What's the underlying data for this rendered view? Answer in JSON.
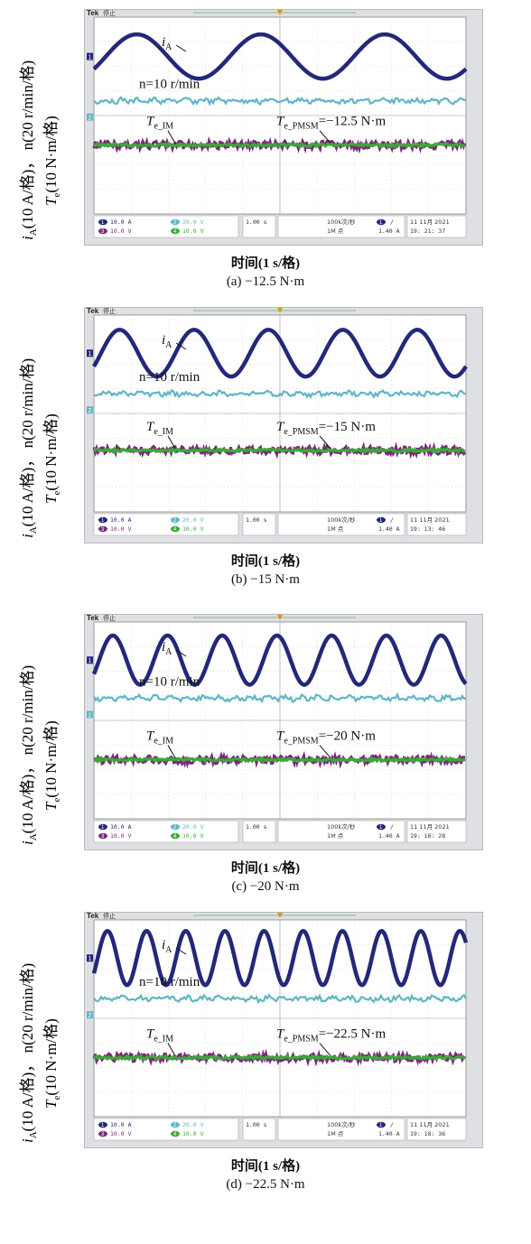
{
  "scope": {
    "brand": "Tek",
    "state": "停止",
    "ch1_scale": "10.0 A",
    "ch2_scale": "20.0 V",
    "ch3_scale": "10.0 V",
    "ch4_scale": "10.0 V",
    "timebase": "1.00 s",
    "sample_rate": "100k次/秒",
    "record_length": "1M 点",
    "trigger_level": "1.40 A",
    "trigger_ch": "1",
    "trigger_slope": "/",
    "date": "11 11月 2021"
  },
  "ylabel_line1": "i",
  "ylabel_line1_sub": "A",
  "ylabel_line1_rest": "(10 A/格)， n(20 r/min/格)",
  "ylabel_line2": "T",
  "ylabel_line2_sub": "e",
  "ylabel_line2_rest": "(10 N·m/格)",
  "xlabel": "时间(1 s/格)",
  "label_iA": "i",
  "label_iA_sub": "A",
  "label_speed": "n=10 r/min",
  "label_TeIM": "T",
  "label_TeIM_sub": "e_IM",
  "label_TePMSM": "T",
  "label_TePMSM_sub": "e_PMSM",
  "colors": {
    "current": "#23287a",
    "speed": "#5fb6c4",
    "torque_pmsm": "#7a2a7a",
    "torque_im": "#3da83a",
    "screen": "#ffffff",
    "grid": "#c9c9c9"
  },
  "chart_data": [
    {
      "type": "line",
      "caption": "(a) −12.5 N·m",
      "torque_label": "=−12.5 N·m",
      "time": "19: 21: 37",
      "x_unit": "s",
      "series": [
        {
          "name": "i_A",
          "periods_on_screen": 3.0,
          "amplitude_div": 0.9,
          "center_div": 1.6
        },
        {
          "name": "n",
          "value": 10,
          "center_div": 3.4
        },
        {
          "name": "T_e_IM",
          "center_div": 5.2
        },
        {
          "name": "T_e_PMSM",
          "value": -12.5,
          "center_div": 5.2
        }
      ]
    },
    {
      "type": "line",
      "caption": "(b) −15 N·m",
      "torque_label": "=−15 N·m",
      "time": "19: 13: 46",
      "x_unit": "s",
      "series": [
        {
          "name": "i_A",
          "periods_on_screen": 5.0,
          "amplitude_div": 0.95,
          "center_div": 1.55
        },
        {
          "name": "n",
          "value": 10,
          "center_div": 3.2
        },
        {
          "name": "T_e_IM",
          "center_div": 5.5
        },
        {
          "name": "T_e_PMSM",
          "value": -15,
          "center_div": 5.5
        }
      ]
    },
    {
      "type": "line",
      "caption": "(c) −20 N·m",
      "torque_label": "=−20 N·m",
      "time": "19: 16: 28",
      "x_unit": "s",
      "series": [
        {
          "name": "i_A",
          "periods_on_screen": 6.8,
          "amplitude_div": 1.0,
          "center_div": 1.55
        },
        {
          "name": "n",
          "value": 10,
          "center_div": 3.1
        },
        {
          "name": "T_e_IM",
          "center_div": 5.6
        },
        {
          "name": "T_e_PMSM",
          "value": -20,
          "center_div": 5.6
        }
      ]
    },
    {
      "type": "line",
      "caption": "(d) −22.5 N·m",
      "torque_label": "=−22.5 N·m",
      "time": "19: 18: 36",
      "x_unit": "s",
      "series": [
        {
          "name": "i_A",
          "periods_on_screen": 9.5,
          "amplitude_div": 1.1,
          "center_div": 1.55
        },
        {
          "name": "n",
          "value": 10,
          "center_div": 3.2
        },
        {
          "name": "T_e_IM",
          "center_div": 5.6
        },
        {
          "name": "T_e_PMSM",
          "value": -22.5,
          "center_div": 5.6
        }
      ]
    }
  ]
}
